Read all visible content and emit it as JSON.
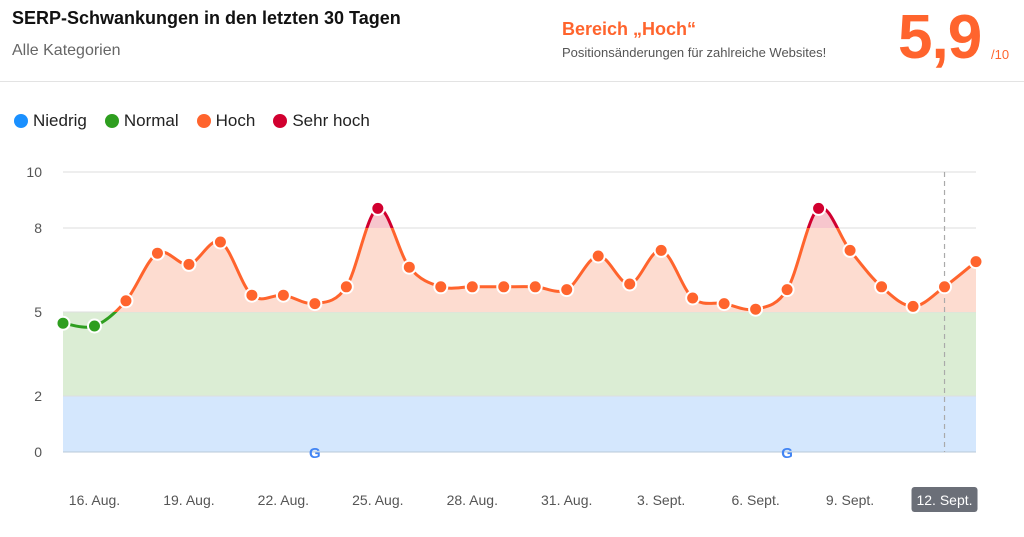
{
  "header": {
    "title": "SERP-Schwankungen in den letzten 30 Tagen",
    "subtitle": "Alle Kategorien",
    "range_label": "Bereich „Hoch“",
    "range_description": "Positionsänderungen für zahlreiche Websites!",
    "score": "5,9",
    "score_max": "/10"
  },
  "legend": [
    {
      "label": "Niedrig",
      "color": "#1a90ff"
    },
    {
      "label": "Normal",
      "color": "#2e9e1f"
    },
    {
      "label": "Hoch",
      "color": "#ff642d"
    },
    {
      "label": "Sehr hoch",
      "color": "#d1002f"
    }
  ],
  "chart_data": {
    "type": "line",
    "ylim": [
      0,
      10
    ],
    "yticks": [
      0,
      2,
      5,
      8,
      10
    ],
    "zones": [
      {
        "name": "Niedrig",
        "from": 0,
        "to": 2,
        "color": "#d4e7fd"
      },
      {
        "name": "Normal",
        "from": 2,
        "to": 5,
        "color": "#dbedd4"
      },
      {
        "name": "Hoch",
        "from": 5,
        "to": 8,
        "color": "#ff642d"
      },
      {
        "name": "Sehr hoch",
        "from": 8,
        "to": 10,
        "color": "#d1002f"
      }
    ],
    "x": [
      "15. Aug.",
      "16. Aug.",
      "17. Aug.",
      "18. Aug.",
      "19. Aug.",
      "20. Aug.",
      "21. Aug.",
      "22. Aug.",
      "23. Aug.",
      "24. Aug.",
      "25. Aug.",
      "26. Aug.",
      "27. Aug.",
      "28. Aug.",
      "29. Aug.",
      "30. Aug.",
      "31. Aug.",
      "1. Sept.",
      "2. Sept.",
      "3. Sept.",
      "4. Sept.",
      "5. Sept.",
      "6. Sept.",
      "7. Sept.",
      "8. Sept.",
      "9. Sept.",
      "10. Sept.",
      "11. Sept.",
      "12. Sept.",
      "13. Sept."
    ],
    "values": [
      4.6,
      4.5,
      5.4,
      7.1,
      6.7,
      7.5,
      5.6,
      5.6,
      5.3,
      5.9,
      8.7,
      6.6,
      5.9,
      5.9,
      5.9,
      5.9,
      5.8,
      7.0,
      6.0,
      7.2,
      5.5,
      5.3,
      5.1,
      5.8,
      8.7,
      7.2,
      5.9,
      5.2,
      5.9,
      6.8
    ],
    "xtick_labels": [
      "16. Aug.",
      "19. Aug.",
      "22. Aug.",
      "25. Aug.",
      "28. Aug.",
      "31. Aug.",
      "3. Sept.",
      "6. Sept.",
      "9. Sept.",
      "12. Sept."
    ],
    "highlighted_date": "12. Sept.",
    "google_update_markers": [
      "23. Aug.",
      "7. Sept."
    ]
  }
}
